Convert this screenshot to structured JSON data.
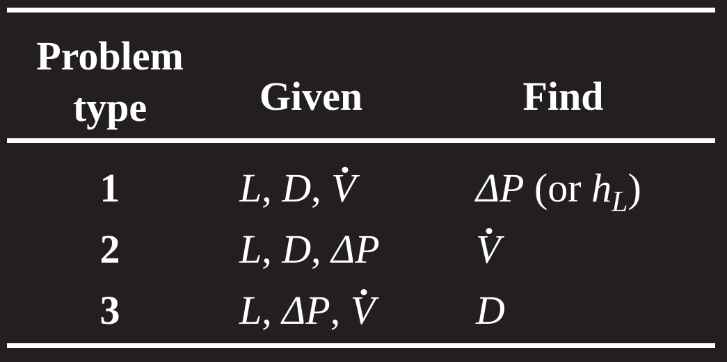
{
  "table": {
    "headers": {
      "type_line1": "Problem",
      "type_line2": "type",
      "given": "Given",
      "find": "Find"
    },
    "rows": [
      {
        "type": "1",
        "given_parts": [
          "L",
          ", ",
          "D",
          ", ",
          "V"
        ],
        "find_parts": [
          "ΔP",
          " (or ",
          "h",
          "L",
          ")"
        ]
      },
      {
        "type": "2",
        "given_parts": [
          "L",
          ", ",
          "D",
          ", ",
          "ΔP"
        ],
        "find_parts": [
          "V"
        ]
      },
      {
        "type": "3",
        "given_parts": [
          "L",
          ", ",
          "ΔP",
          ", ",
          "V"
        ],
        "find_parts": [
          "D"
        ]
      }
    ]
  },
  "colors": {
    "background": "#231f20",
    "foreground": "#ffffff"
  }
}
